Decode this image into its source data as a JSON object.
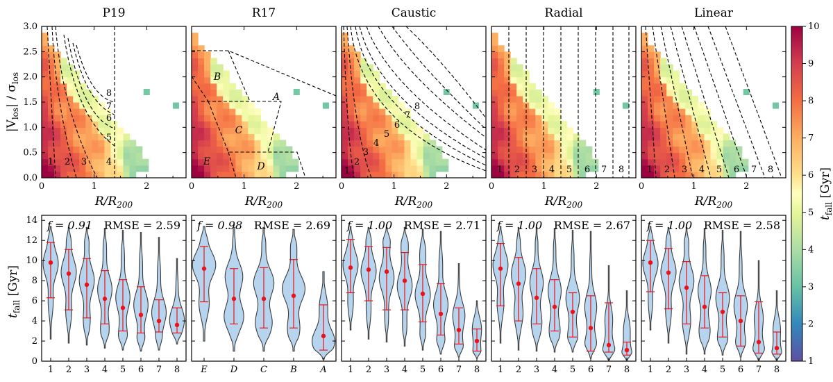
{
  "chart_data": {
    "type": "heatmap",
    "colorbar": {
      "label": "t_fall [Gyr]",
      "label_main": "t",
      "label_sub": "fall",
      "label_unit": " [Gyr]",
      "range": [
        1,
        10
      ],
      "ticks": [
        "1",
        "2",
        "3",
        "4",
        "5",
        "6",
        "7",
        "8",
        "9",
        "10"
      ]
    },
    "top_axes": {
      "xlabel": "R/R200",
      "xlabel_main": "R/R",
      "xlabel_sub": "200",
      "ylabel": "|V_los| / σ_los",
      "ylabel_main": "|V",
      "ylabel_sub1": "los",
      "ylabel_mid": "| / σ",
      "ylabel_sub2": "los",
      "xlim": [
        0,
        2.75
      ],
      "ylim": [
        0,
        3.0
      ],
      "xticks": [
        "0",
        "1",
        "2"
      ],
      "yticks": [
        "0.0",
        "0.5",
        "1.0",
        "1.5",
        "2.0",
        "2.5",
        "3.0"
      ]
    },
    "bottom_axes": {
      "ylabel": "t_fall [Gyr]",
      "ylabel_main": "t",
      "ylabel_sub": "fall",
      "ylabel_unit": " [Gyr]",
      "ylim": [
        0,
        14.5
      ],
      "yticks": [
        "0",
        "2",
        "4",
        "6",
        "8",
        "10",
        "12",
        "14"
      ]
    },
    "panels": [
      {
        "title": "P19",
        "bins": [
          "1",
          "2",
          "3",
          "4",
          "5",
          "6",
          "7",
          "8"
        ],
        "f_text": "f = 0.91",
        "rmse_text": "RMSE = 2.59",
        "medians": [
          9.8,
          8.7,
          7.6,
          6.2,
          5.3,
          4.6,
          4.0,
          3.6
        ],
        "lows": [
          6.3,
          5.1,
          4.3,
          3.7,
          3.0,
          2.8,
          2.9,
          2.8
        ],
        "highs": [
          11.8,
          11.1,
          10.2,
          9.0,
          8.1,
          7.4,
          6.1,
          5.3
        ],
        "vmin": [
          2.2,
          1.8,
          1.6,
          1.3,
          1.1,
          1.0,
          1.1,
          1.7
        ],
        "vmax": [
          13.4,
          13.3,
          13.3,
          13.2,
          13.0,
          12.8,
          12.3,
          10.2
        ]
      },
      {
        "title": "R17",
        "bins": [
          "E",
          "D",
          "C",
          "B",
          "A"
        ],
        "f_text": "f = 0.98",
        "rmse_text": "RMSE = 2.69",
        "medians": [
          9.2,
          6.2,
          6.2,
          6.5,
          2.5
        ],
        "lows": [
          5.9,
          3.7,
          3.3,
          3.3,
          1.1
        ],
        "highs": [
          11.4,
          9.2,
          9.3,
          10.1,
          5.6
        ],
        "vmin": [
          2.0,
          1.0,
          1.0,
          1.0,
          0.2
        ],
        "vmax": [
          13.4,
          13.3,
          13.3,
          13.1,
          8.9
        ]
      },
      {
        "title": "Caustic",
        "bins": [
          "1",
          "2",
          "3",
          "4",
          "5",
          "6",
          "7",
          "8"
        ],
        "f_text": "f = 1.00",
        "rmse_text": "RMSE = 2.71",
        "medians": [
          9.3,
          9.1,
          8.9,
          8.0,
          6.7,
          4.7,
          3.1,
          2.0
        ],
        "lows": [
          6.8,
          6.0,
          5.1,
          5.1,
          3.9,
          2.6,
          1.7,
          1.0
        ],
        "highs": [
          12.1,
          11.4,
          11.3,
          10.8,
          9.6,
          7.7,
          5.3,
          3.2
        ],
        "vmin": [
          3.1,
          2.2,
          1.9,
          1.5,
          1.1,
          0.7,
          0.4,
          0.3
        ],
        "vmax": [
          13.4,
          13.3,
          13.3,
          13.3,
          13.1,
          12.9,
          9.7,
          6.0
        ]
      },
      {
        "title": "Radial",
        "bins": [
          "1",
          "2",
          "3",
          "4",
          "5",
          "6",
          "7",
          "8"
        ],
        "f_text": "f = 1.00",
        "rmse_text": "RMSE = 2.67",
        "medians": [
          9.2,
          7.7,
          6.3,
          5.4,
          4.9,
          3.3,
          1.6,
          1.1
        ],
        "lows": [
          5.5,
          4.0,
          3.7,
          3.0,
          2.4,
          1.0,
          0.9,
          0.6
        ],
        "highs": [
          11.7,
          10.3,
          9.2,
          8.1,
          6.8,
          6.5,
          5.8,
          1.9
        ],
        "vmin": [
          1.8,
          1.1,
          1.0,
          0.9,
          0.9,
          0.3,
          0.1,
          0.1
        ],
        "vmax": [
          13.4,
          13.3,
          13.3,
          13.2,
          13.0,
          12.9,
          9.5,
          7.0
        ]
      },
      {
        "title": "Linear",
        "bins": [
          "1",
          "2",
          "3",
          "4",
          "5",
          "6",
          "7",
          "8"
        ],
        "f_text": "f = 1.00",
        "rmse_text": "RMSE = 2.58",
        "medians": [
          9.8,
          8.8,
          7.3,
          5.4,
          4.9,
          4.0,
          1.9,
          1.3
        ],
        "lows": [
          6.9,
          5.2,
          3.7,
          3.3,
          2.4,
          1.5,
          0.8,
          0.7
        ],
        "highs": [
          12.0,
          11.2,
          9.9,
          8.5,
          6.8,
          6.5,
          5.9,
          2.9
        ],
        "vmin": [
          3.1,
          1.8,
          0.7,
          0.7,
          0.6,
          0.4,
          0.1,
          0.1
        ],
        "vmax": [
          13.4,
          13.3,
          13.3,
          13.2,
          13.0,
          12.9,
          10.0,
          7.0
        ]
      }
    ]
  }
}
